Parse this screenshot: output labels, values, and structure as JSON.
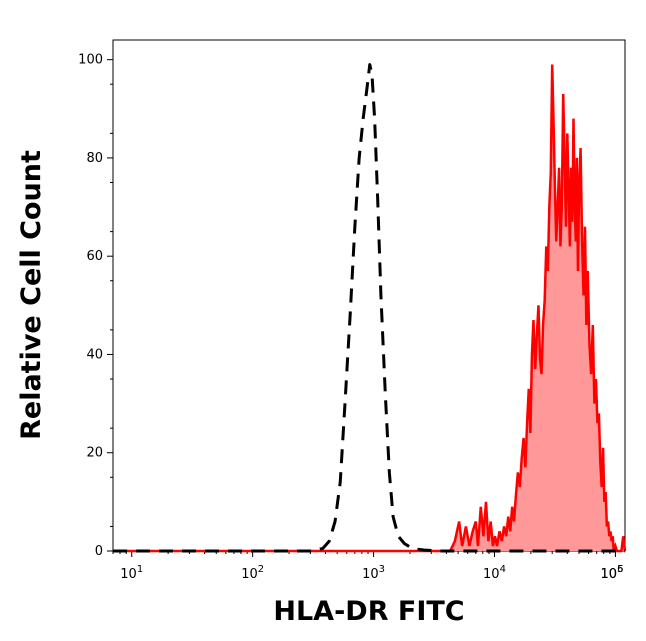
{
  "chart_data": {
    "type": "area",
    "xlabel": "HLA-DR FITC",
    "ylabel": "Relative Cell Count",
    "x_scale": "log",
    "xlim": [
      7,
      120000
    ],
    "ylim": [
      0,
      104
    ],
    "x_ticks": [
      {
        "value": 10,
        "base": "10",
        "exp": "1"
      },
      {
        "value": 100,
        "base": "10",
        "exp": "2"
      },
      {
        "value": 1000,
        "base": "10",
        "exp": "3"
      },
      {
        "value": 10000,
        "base": "10",
        "exp": "4"
      },
      {
        "value": 100000,
        "base": "10",
        "exp": "5"
      },
      {
        "value": 1000000,
        "base": "10",
        "exp": "6"
      }
    ],
    "y_ticks": [
      0,
      20,
      40,
      60,
      80,
      100
    ],
    "grid": false,
    "series": [
      {
        "style": "dashed",
        "color": "#000000",
        "x": [
          7,
          50,
          150,
          300,
          380,
          430,
          480,
          530,
          580,
          640,
          700,
          760,
          820,
          880,
          930,
          970,
          1020,
          1080,
          1150,
          1250,
          1350,
          1450,
          1600,
          1800,
          2100,
          2600,
          3500,
          6000,
          20000,
          120000
        ],
        "y": [
          0,
          0,
          0,
          0,
          0.5,
          2,
          6,
          14,
          30,
          48,
          66,
          80,
          88,
          94,
          99,
          97,
          88,
          72,
          52,
          32,
          16,
          7,
          3,
          1.5,
          0.5,
          0.2,
          0,
          0,
          0,
          0
        ]
      },
      {
        "style": "filled",
        "color": "#ff0000",
        "fill": "#ff9999",
        "x": [
          7,
          100,
          1000,
          4000,
          4300,
          4700,
          5100,
          5400,
          5800,
          6200,
          6600,
          7000,
          7300,
          7700,
          8100,
          8500,
          8900,
          9300,
          9700,
          10100,
          10500,
          11000,
          11500,
          12000,
          12500,
          13000,
          13500,
          14000,
          14500,
          15000,
          15600,
          16200,
          16800,
          17400,
          18000,
          18600,
          19200,
          19800,
          20400,
          21000,
          21700,
          22400,
          23100,
          23800,
          24500,
          25200,
          26000,
          26800,
          27600,
          28400,
          29200,
          30000,
          30800,
          31600,
          32400,
          33300,
          34200,
          35100,
          36000,
          37000,
          38000,
          39000,
          40000,
          41000,
          42000,
          43000,
          44000,
          45000,
          46000,
          47000,
          48000,
          49000,
          50000,
          51500,
          53000,
          54500,
          56000,
          57500,
          59000,
          61000,
          63000,
          65000,
          67000,
          69000,
          71000,
          73000,
          75000,
          77000,
          79000,
          81000,
          83000,
          85000,
          87000,
          89000,
          91000,
          93000,
          95000,
          97000,
          100000,
          103000,
          106000,
          109000,
          112000,
          116000,
          120000
        ],
        "y": [
          0,
          0,
          0,
          0,
          0,
          2,
          6,
          1,
          5,
          1,
          4,
          6,
          1,
          9,
          3,
          10,
          2,
          6,
          1,
          3,
          1,
          4,
          2,
          5,
          3,
          7,
          4,
          9,
          6,
          11,
          16,
          13,
          19,
          23,
          17,
          26,
          33,
          24,
          40,
          47,
          37,
          44,
          50,
          39,
          36,
          46,
          51,
          62,
          57,
          70,
          77,
          99,
          87,
          74,
          63,
          70,
          78,
          62,
          70,
          93,
          80,
          66,
          85,
          74,
          62,
          78,
          67,
          88,
          72,
          63,
          80,
          57,
          73,
          82,
          63,
          52,
          66,
          46,
          57,
          42,
          36,
          46,
          30,
          35,
          26,
          28,
          18,
          13,
          21,
          10,
          12,
          5,
          6,
          3,
          4,
          2,
          3,
          0,
          1,
          0,
          0,
          0,
          0,
          3,
          0
        ]
      }
    ]
  }
}
